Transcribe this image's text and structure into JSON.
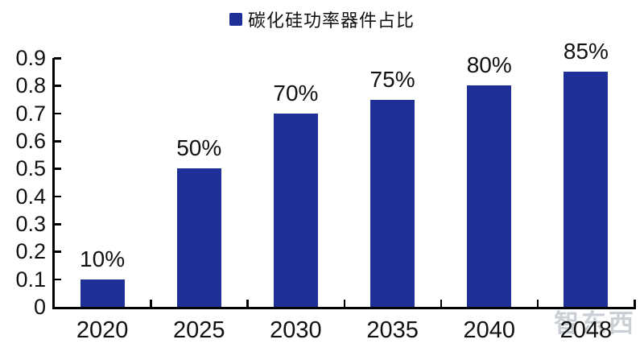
{
  "chart_data": {
    "type": "bar",
    "title": "",
    "legend": "碳化硅功率器件占比",
    "legend_position": "top-center",
    "categories": [
      "2020",
      "2025",
      "2030",
      "2035",
      "2040",
      "2048"
    ],
    "values": [
      0.1,
      0.5,
      0.7,
      0.75,
      0.8,
      0.85
    ],
    "value_labels": [
      "10%",
      "50%",
      "70%",
      "75%",
      "80%",
      "85%"
    ],
    "xlabel": "",
    "ylabel": "",
    "ylim": [
      0,
      0.9
    ],
    "yticks": [
      "0",
      "0.1",
      "0.2",
      "0.3",
      "0.4",
      "0.5",
      "0.6",
      "0.7",
      "0.8",
      "0.9"
    ],
    "grid": false,
    "bar_color": "#1f2f98",
    "axis_color": "#000000",
    "text_color": "#111111",
    "watermark": "智东西"
  }
}
